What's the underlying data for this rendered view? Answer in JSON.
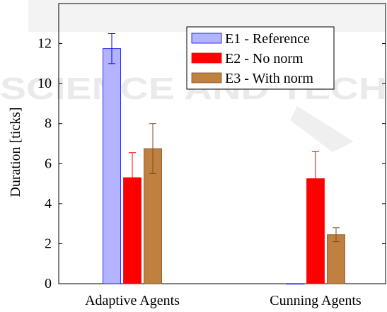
{
  "chart_data": {
    "type": "bar",
    "categories": [
      "Adaptive Agents",
      "Cunning Agents"
    ],
    "ylabel": "Duration [ticks]",
    "xlabel": "",
    "title": "",
    "ylim": [
      0,
      14
    ],
    "yticks": [
      0,
      2,
      4,
      6,
      8,
      10,
      12
    ],
    "grid": false,
    "legend_position": "top-right",
    "series": [
      {
        "name": "E1 - Reference",
        "values": [
          11.75,
          0.0
        ],
        "errors": [
          0.75,
          0.0
        ],
        "fill": "#b3b3ff",
        "stroke": "#0000ff"
      },
      {
        "name": "E2 - No norm",
        "values": [
          5.3,
          5.25
        ],
        "errors": [
          1.25,
          1.35
        ],
        "fill": "#ff0000",
        "stroke": "#ff0000"
      },
      {
        "name": "E3 - With norm",
        "values": [
          6.75,
          2.45
        ],
        "errors": [
          1.25,
          0.35
        ],
        "fill": "#bf8040",
        "stroke": "#7a4f24"
      }
    ]
  },
  "watermark": {
    "lines": [
      "SCIENCE AND TECH"
    ]
  }
}
